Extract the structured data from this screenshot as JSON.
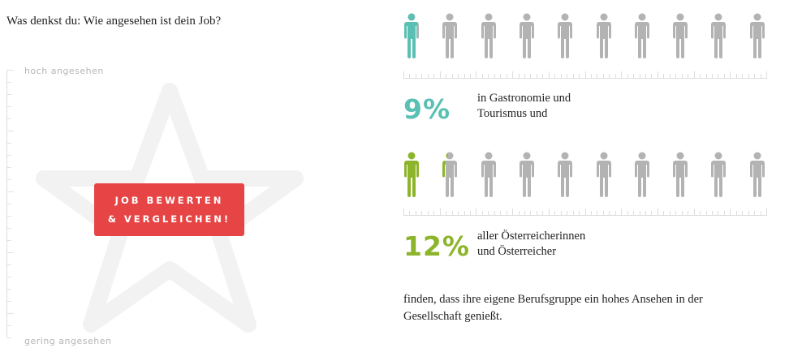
{
  "question": "Was denkst du: Wie angesehen ist dein Job?",
  "scale": {
    "high_label": "hoch angesehen",
    "low_label": "gering angesehen"
  },
  "cta": {
    "line1": "JOB BEWERTEN",
    "line2": "& VERGLEICHEN!"
  },
  "colors": {
    "teal": "#5bc0b4",
    "green": "#8db52c",
    "gray": "#b3b3b3",
    "cta": "#e74545"
  },
  "stat1": {
    "percent": "9%",
    "value": 9,
    "text_line1": "in Gastronomie und",
    "text_line2": "Tourismus und"
  },
  "stat2": {
    "percent": "12%",
    "value": 12,
    "text_line1": "aller Österreicherinnen",
    "text_line2": "und Österreicher"
  },
  "footer": "finden, dass ihre eigene Berufsgruppe ein hohes Ansehen in der Gesellschaft genießt.",
  "icons": {
    "person": "person-icon",
    "star": "star-icon"
  }
}
